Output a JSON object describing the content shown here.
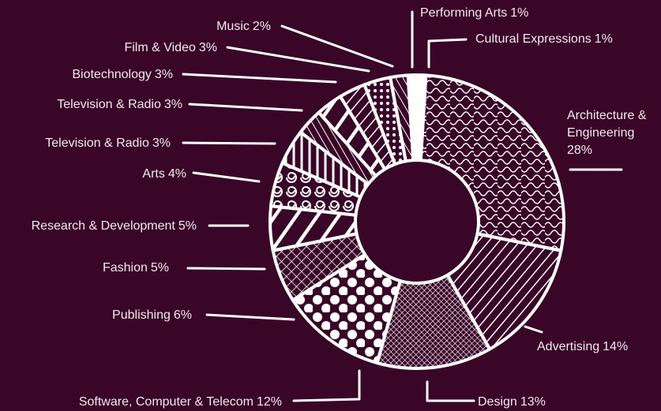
{
  "chart_data": {
    "type": "pie",
    "donut": true,
    "categories": [
      "Cultural Expressions",
      "Architecture & Engineering",
      "Advertising",
      "Design",
      "Software, Computer & Telecom",
      "Publishing",
      "Fashion",
      "Research & Development",
      "Arts",
      "Television & Radio",
      "Television & Radio",
      "Biotechnology",
      "Film & Video",
      "Music",
      "Performing Arts"
    ],
    "values": [
      1,
      28,
      14,
      13,
      12,
      6,
      5,
      5,
      4,
      3,
      3,
      3,
      3,
      2,
      1
    ],
    "value_labels": [
      "1%",
      "28%",
      "14%",
      "13%",
      "12%",
      "6%",
      "5%",
      "5%",
      "4%",
      "3%",
      "3%",
      "3%",
      "3%",
      "2%",
      "1%"
    ],
    "color": "#ffffff"
  }
}
